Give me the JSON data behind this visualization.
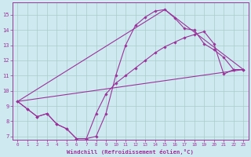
{
  "background_color": "#ceeaf0",
  "grid_color": "#aacccc",
  "line_color": "#993399",
  "marker_color": "#993399",
  "xlabel": "Windchill (Refroidissement éolien,°C)",
  "xlim": [
    -0.5,
    23.5
  ],
  "ylim": [
    6.8,
    15.8
  ],
  "yticks": [
    7,
    8,
    9,
    10,
    11,
    12,
    13,
    14,
    15
  ],
  "xticks": [
    0,
    1,
    2,
    3,
    4,
    5,
    6,
    7,
    8,
    9,
    10,
    11,
    12,
    13,
    14,
    15,
    16,
    17,
    18,
    19,
    20,
    21,
    22,
    23
  ],
  "line1_x": [
    0,
    1,
    2,
    3,
    4,
    5,
    6,
    7,
    8,
    9,
    10,
    11,
    12,
    13,
    14,
    15,
    16,
    17,
    18,
    19,
    20,
    21,
    22,
    23
  ],
  "line1_y": [
    9.3,
    8.8,
    8.3,
    8.5,
    7.8,
    7.5,
    6.85,
    6.85,
    7.0,
    8.5,
    11.0,
    13.0,
    14.3,
    14.85,
    15.25,
    15.35,
    14.8,
    14.1,
    14.0,
    13.1,
    12.7,
    12.2,
    11.4,
    11.4
  ],
  "line2_x": [
    0,
    1,
    2,
    3,
    4,
    5,
    6,
    7,
    8,
    9,
    10,
    11,
    12,
    13,
    14,
    15,
    16,
    17,
    18,
    19,
    20,
    21,
    22,
    23
  ],
  "line2_y": [
    9.3,
    8.8,
    8.3,
    8.5,
    7.8,
    7.5,
    6.85,
    6.85,
    8.5,
    9.8,
    10.5,
    11.0,
    11.5,
    12.0,
    12.5,
    12.9,
    13.2,
    13.5,
    13.7,
    13.9,
    13.1,
    11.1,
    11.4,
    11.4
  ],
  "line3_x": [
    0,
    23
  ],
  "line3_y": [
    9.3,
    11.4
  ],
  "line4_x": [
    0,
    15,
    23
  ],
  "line4_y": [
    9.3,
    15.35,
    11.4
  ]
}
